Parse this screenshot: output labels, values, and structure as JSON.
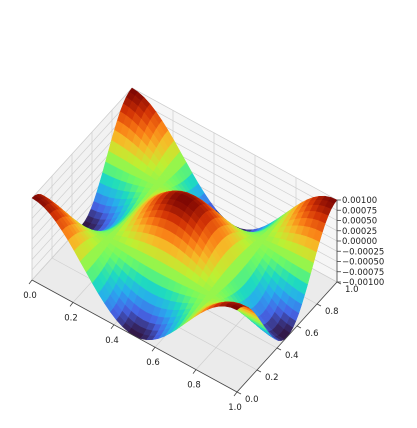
{
  "chart_data": {
    "type": "surface",
    "title": "",
    "xlabel": "",
    "ylabel": "",
    "zlabel": "",
    "x_ticks": [
      "0.0",
      "0.2",
      "0.4",
      "0.6",
      "0.8",
      "1.0"
    ],
    "y_ticks": [
      "0.0",
      "0.2",
      "0.4",
      "0.6",
      "0.8",
      "1.0"
    ],
    "z_ticks": [
      "−0.00100",
      "−0.00075",
      "−0.00050",
      "−0.00025",
      "0.00000",
      "0.00025",
      "0.00050",
      "0.00075",
      "0.00100"
    ],
    "xlim": [
      0,
      1
    ],
    "ylim": [
      0,
      1
    ],
    "zlim": [
      -0.001,
      0.001
    ],
    "colormap": "turbo",
    "grid": true,
    "surface": {
      "function": "0.001 * cos(2*pi*x) * cos(2*pi*y)",
      "z_min": -0.001,
      "z_max": 0.001
    }
  }
}
